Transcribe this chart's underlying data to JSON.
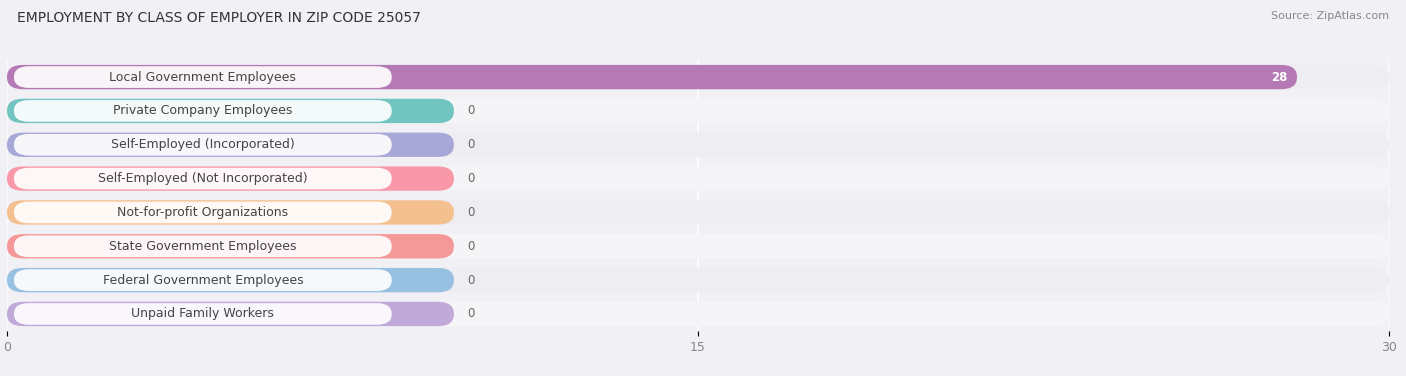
{
  "title": "EMPLOYMENT BY CLASS OF EMPLOYER IN ZIP CODE 25057",
  "source": "Source: ZipAtlas.com",
  "categories": [
    "Local Government Employees",
    "Private Company Employees",
    "Self-Employed (Incorporated)",
    "Self-Employed (Not Incorporated)",
    "Not-for-profit Organizations",
    "State Government Employees",
    "Federal Government Employees",
    "Unpaid Family Workers"
  ],
  "values": [
    28,
    0,
    0,
    0,
    0,
    0,
    0,
    0
  ],
  "bar_colors": [
    "#b57ab5",
    "#72c4c0",
    "#a8a8d8",
    "#f898a8",
    "#f5c090",
    "#f49898",
    "#98c0e0",
    "#c0a8d8"
  ],
  "label_bg_colors": [
    "#ffffff",
    "#ffffff",
    "#ffffff",
    "#ffffff",
    "#ffffff",
    "#ffffff",
    "#ffffff",
    "#ffffff"
  ],
  "row_bg_colors": [
    "#ededf2",
    "#f5f5f8",
    "#ededf2",
    "#f5f5f8",
    "#ededf2",
    "#f5f5f8",
    "#ededf2",
    "#f5f5f8"
  ],
  "xlim": [
    0,
    30
  ],
  "xticks": [
    0,
    15,
    30
  ],
  "background_color": "#f0f0f5",
  "title_fontsize": 10,
  "label_fontsize": 9,
  "value_fontsize": 8.5
}
